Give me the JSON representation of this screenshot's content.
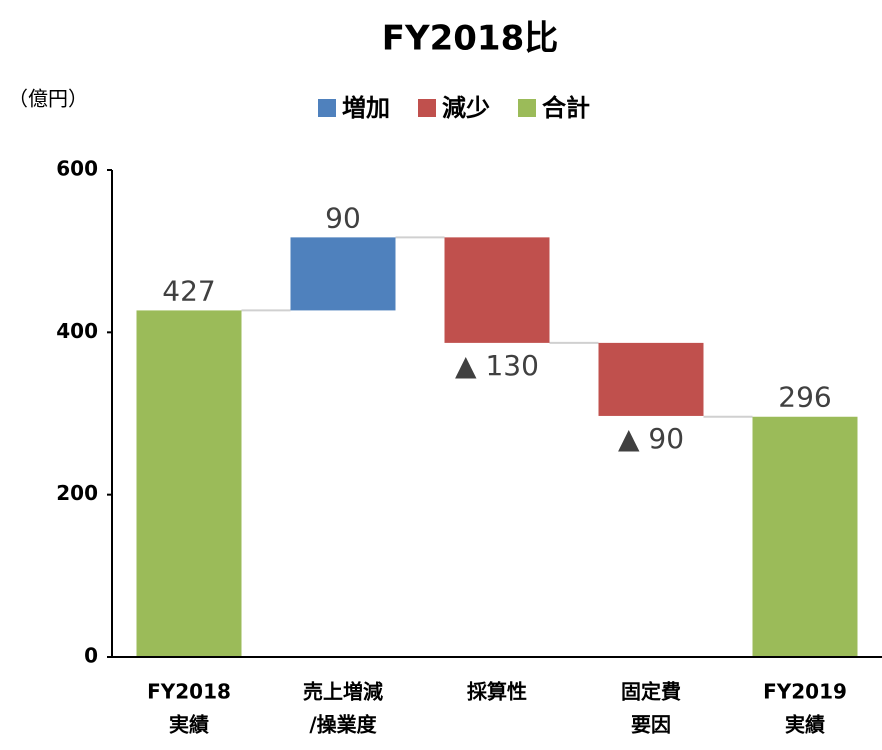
{
  "chart_data": {
    "type": "waterfall",
    "title": "FY2018比",
    "y_unit": "（億円）",
    "legend": [
      {
        "name": "増加",
        "color": "#4f81bd"
      },
      {
        "name": "減少",
        "color": "#c0504d"
      },
      {
        "name": "合計",
        "color": "#9bbb59"
      }
    ],
    "categories": [
      [
        "FY2018",
        "実績"
      ],
      [
        "売上増減",
        "/操業度"
      ],
      [
        "採算性"
      ],
      [
        "固定費",
        "要因"
      ],
      [
        "FY2019",
        "実績"
      ]
    ],
    "values": [
      427,
      90,
      -130,
      -90,
      296
    ],
    "value_labels": [
      "427",
      "90",
      "▲ 130",
      "▲ 90",
      "296"
    ],
    "is_total": [
      true,
      false,
      false,
      false,
      true
    ],
    "colors": [
      "#9bbb59",
      "#4f81bd",
      "#c0504d",
      "#c0504d",
      "#9bbb59"
    ],
    "ylim": [
      0,
      600
    ],
    "yticks": [
      0,
      200,
      400,
      600
    ],
    "grid": false
  }
}
